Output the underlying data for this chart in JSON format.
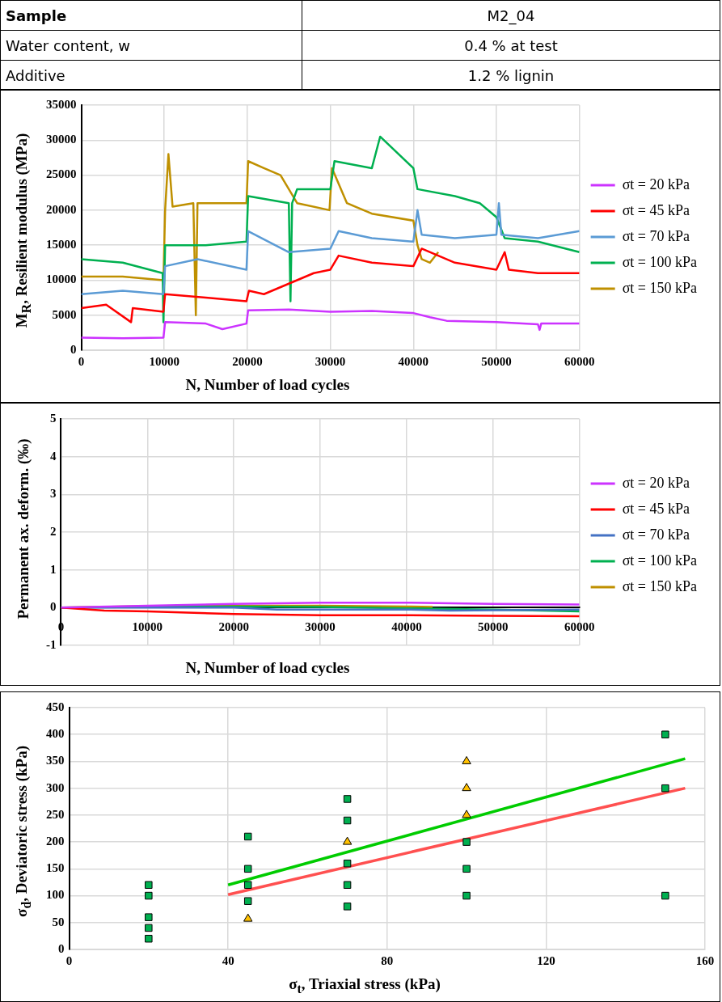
{
  "chart_data": [
    {
      "type": "other",
      "annotations": [
        "Sample",
        "M2_04",
        "Water content, w",
        "0.4 % at test",
        "Additive",
        "1.2 % lignin"
      ]
    },
    {
      "type": "line",
      "xlabel": "N, Number of load cycles",
      "ylabel": "M$_{R}$, Resilient modulus (MPa)",
      "xlim": [
        0,
        60000
      ],
      "xticks": [
        0,
        10000,
        20000,
        30000,
        40000,
        50000,
        60000
      ],
      "ylim": [
        0,
        35000
      ],
      "yticks": [
        0,
        5000,
        10000,
        15000,
        20000,
        25000,
        30000,
        35000
      ],
      "grid": true,
      "legend": "right",
      "marker": "none",
      "series": [
        {
          "name": "σt = 20 kPa",
          "color": "#cc33ff",
          "x": [
            0,
            5000,
            9900,
            10100,
            15000,
            17000,
            19900,
            20100,
            25000,
            30000,
            35000,
            40000,
            42000,
            44000,
            50000,
            55000,
            55200,
            55400,
            60000
          ],
          "values": [
            1800,
            1700,
            1800,
            4000,
            3800,
            3000,
            3800,
            5700,
            5800,
            5500,
            5600,
            5300,
            4700,
            4200,
            4000,
            3700,
            2900,
            3800,
            3800
          ]
        },
        {
          "name": "σt = 45 kPa",
          "color": "#ff0000",
          "x": [
            0,
            3000,
            6000,
            6200,
            9900,
            10100,
            15000,
            19900,
            20200,
            22000,
            25000,
            28000,
            30000,
            31000,
            35000,
            40000,
            41000,
            45000,
            50000,
            51000,
            51500,
            55000,
            60000
          ],
          "values": [
            6000,
            6500,
            4000,
            6000,
            5500,
            8000,
            7500,
            7000,
            8500,
            8000,
            9500,
            11000,
            11500,
            13500,
            12500,
            12000,
            14500,
            12500,
            11500,
            14000,
            11500,
            11000,
            11000
          ]
        },
        {
          "name": "σt = 70 kPa",
          "color": "#5b9bd5",
          "x": [
            0,
            5000,
            9900,
            10100,
            14000,
            19900,
            20100,
            25000,
            30000,
            31000,
            35000,
            40000,
            40500,
            41000,
            45000,
            50000,
            50300,
            50600,
            55000,
            60000
          ],
          "values": [
            8000,
            8500,
            8000,
            12000,
            13000,
            11500,
            17000,
            14000,
            14500,
            17000,
            16000,
            15500,
            20000,
            16500,
            16000,
            16500,
            21000,
            16500,
            16000,
            17000
          ]
        },
        {
          "name": "σt = 100 kPa",
          "color": "#00b050",
          "x": [
            0,
            5000,
            9800,
            9900,
            10100,
            15000,
            19900,
            20100,
            25000,
            25200,
            25400,
            26000,
            30000,
            30500,
            35000,
            36000,
            40000,
            40500,
            45000,
            48000,
            50000,
            51000,
            55000,
            60000
          ],
          "values": [
            13000,
            12500,
            11000,
            4000,
            15000,
            15000,
            15500,
            22000,
            21000,
            7000,
            21000,
            23000,
            23000,
            27000,
            26000,
            30500,
            26000,
            23000,
            22000,
            21000,
            19000,
            16000,
            15500,
            14000
          ]
        },
        {
          "name": "σt = 150 kPa",
          "color": "#bf9000",
          "x": [
            0,
            5000,
            9900,
            10100,
            10500,
            11000,
            13500,
            13800,
            14000,
            19900,
            20100,
            22000,
            24000,
            26000,
            29900,
            30200,
            32000,
            35000,
            40000,
            40500,
            41000,
            42000,
            43000
          ],
          "values": [
            10500,
            10500,
            10000,
            20000,
            28000,
            20500,
            21000,
            5000,
            21000,
            21000,
            27000,
            26000,
            25000,
            21000,
            20000,
            26000,
            21000,
            19500,
            18500,
            15000,
            13000,
            12500,
            14000
          ]
        }
      ]
    },
    {
      "type": "line",
      "xlabel": "N, Number of load cycles",
      "ylabel": "Permanent ax. deform. (‰)",
      "xlim": [
        0,
        60000
      ],
      "xticks": [
        0,
        10000,
        20000,
        30000,
        40000,
        50000,
        60000
      ],
      "ylim": [
        -1,
        5
      ],
      "yticks": [
        -1,
        0,
        1,
        2,
        3,
        4,
        5
      ],
      "grid": true,
      "legend": "right",
      "marker": "none",
      "series": [
        {
          "name": "σt = 20 kPa",
          "color": "#cc33ff",
          "x": [
            0,
            10000,
            20000,
            30000,
            40000,
            50000,
            60000
          ],
          "values": [
            0,
            0.05,
            0.1,
            0.13,
            0.13,
            0.1,
            0.08
          ]
        },
        {
          "name": "σt = 45 kPa",
          "color": "#ff0000",
          "x": [
            0,
            5000,
            10000,
            20000,
            30000,
            40000,
            50000,
            60000
          ],
          "values": [
            0,
            -0.08,
            -0.1,
            -0.17,
            -0.2,
            -0.2,
            -0.22,
            -0.23
          ]
        },
        {
          "name": "σt = 70 kPa",
          "color": "#4472c4",
          "x": [
            0,
            10000,
            20000,
            25000,
            40000,
            45000,
            60000
          ],
          "values": [
            0,
            0,
            0,
            -0.05,
            -0.05,
            -0.08,
            -0.05
          ]
        },
        {
          "name": "σt = 100 kPa",
          "color": "#00b050",
          "x": [
            0,
            10000,
            20000,
            30000,
            40000,
            50000,
            60000
          ],
          "values": [
            0,
            0.02,
            0.03,
            0.02,
            -0.02,
            -0.05,
            -0.1
          ]
        },
        {
          "name": "σt = 150 kPa",
          "color": "#bf9000",
          "x": [
            0,
            10000,
            20000,
            30000,
            40000,
            43000
          ],
          "values": [
            0,
            0.04,
            0.05,
            0.05,
            0.03,
            0.02
          ]
        }
      ]
    },
    {
      "type": "scatter",
      "xlabel": "σ$_{t}$, Triaxial stress (kPa)",
      "ylabel": "σ$_{d}$, Deviatoric stress (kPa)",
      "xlim": [
        0,
        160
      ],
      "xticks": [
        0,
        40,
        80,
        120,
        160
      ],
      "ylim": [
        0,
        450
      ],
      "yticks": [
        0,
        50,
        100,
        150,
        200,
        250,
        300,
        350,
        400,
        450
      ],
      "grid": true,
      "series": [
        {
          "color": "#00b050",
          "marker": "square",
          "x": [
            20,
            20,
            20,
            20,
            20,
            45,
            45,
            45,
            45,
            70,
            70,
            70,
            70,
            70,
            100,
            100,
            100,
            150,
            150,
            150
          ],
          "values": [
            20,
            40,
            60,
            100,
            120,
            90,
            120,
            150,
            210,
            80,
            120,
            160,
            240,
            280,
            100,
            150,
            200,
            100,
            300,
            400
          ]
        },
        {
          "color": "#ffc000",
          "marker": "triangle",
          "x": [
            45,
            70,
            100,
            100,
            100
          ],
          "values": [
            57,
            200,
            250,
            300,
            350
          ]
        },
        {
          "type": "line",
          "color": "#00cc00",
          "marker": "none",
          "x": [
            40,
            155
          ],
          "values": [
            120,
            355
          ]
        },
        {
          "type": "line",
          "color": "#ff5050",
          "marker": "none",
          "x": [
            40,
            155
          ],
          "values": [
            102,
            300
          ]
        }
      ]
    }
  ]
}
